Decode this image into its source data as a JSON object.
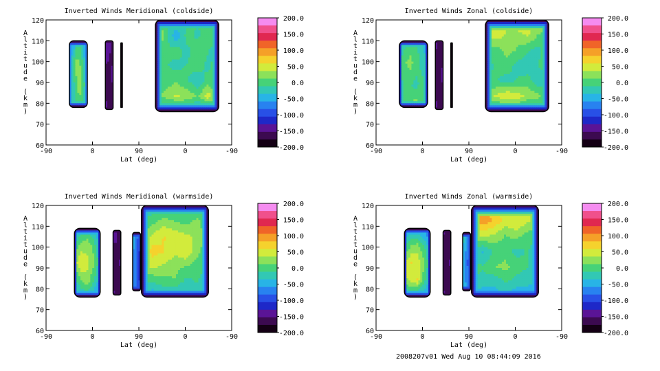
{
  "footer": "2008207v01 Wed Aug 10 08:44:09 2016",
  "colorbar": {
    "labels": [
      "200.0",
      "150.0",
      "100.0",
      "50.0",
      "0.0",
      "-50.0",
      "-100.0",
      "-150.0",
      "-200.0"
    ],
    "colors": [
      "#f58cf0",
      "#f0508c",
      "#e02850",
      "#f06428",
      "#f5a028",
      "#f5d22d",
      "#d2eb3c",
      "#8ce15a",
      "#46d278",
      "#32c8b4",
      "#28b4e6",
      "#2882f0",
      "#2850e6",
      "#1e28c8",
      "#5a1496",
      "#3c0a50",
      "#140014"
    ]
  },
  "chart_data": [
    {
      "type": "contour",
      "title": "Inverted Winds Meridional (coldside)",
      "xlabel": "Lat (deg)",
      "ylabel": "Altitude (km)",
      "xticks": [
        "-90",
        "0",
        "90",
        "0",
        "-90"
      ],
      "yticks": [
        60,
        70,
        80,
        90,
        100,
        110,
        120
      ],
      "ylim": [
        60,
        120
      ],
      "zlim": [
        -200,
        200
      ],
      "blobs": [
        {
          "x0": -45,
          "x1": -10,
          "y0": 78,
          "y1": 110,
          "field": [
            [
              0,
              -80,
              -20,
              0,
              -50,
              -80
            ],
            [
              -60,
              -10,
              20,
              10,
              -20,
              -70
            ],
            [
              -50,
              -30,
              10,
              30,
              0,
              -60
            ],
            [
              -70,
              -20,
              0,
              -10,
              -30,
              -80
            ]
          ]
        },
        {
          "x0": 25,
          "x1": 40,
          "y0": 77,
          "y1": 110,
          "field": [
            [
              -140,
              -160
            ],
            [
              -160,
              -150
            ],
            [
              -150,
              -160
            ]
          ]
        },
        {
          "x0": 55,
          "x1": 58,
          "y0": 78,
          "y1": 109,
          "field": [
            [
              -180
            ],
            [
              -190
            ]
          ]
        },
        {
          "x0": 122,
          "x1": 245,
          "y0": 76,
          "y1": 120,
          "field": [
            [
              40,
              -20,
              10,
              -20,
              0,
              -30,
              10
            ],
            [
              60,
              0,
              -60,
              0,
              -20,
              10,
              0
            ],
            [
              20,
              -10,
              0,
              -20,
              10,
              -10,
              -30
            ],
            [
              0,
              -10,
              -20,
              -10,
              0,
              -20,
              10
            ],
            [
              -10,
              0,
              10,
              -10,
              -30,
              0,
              -20
            ],
            [
              10,
              20,
              40,
              30,
              10,
              50,
              0
            ],
            [
              -60,
              -50,
              -60,
              -50,
              -60,
              -50,
              -40
            ]
          ]
        }
      ]
    },
    {
      "type": "contour",
      "title": "Inverted Winds Zonal (coldside)",
      "xlabel": "Lat (deg)",
      "ylabel": "Altitude (km)",
      "xticks": [
        "-90",
        "0",
        "90",
        "0",
        "-90"
      ],
      "yticks": [
        60,
        70,
        80,
        90,
        100,
        110,
        120
      ],
      "ylim": [
        60,
        120
      ],
      "zlim": [
        -200,
        200
      ],
      "blobs": [
        {
          "x0": -45,
          "x1": 10,
          "y0": 78,
          "y1": 110,
          "field": [
            [
              -40,
              -20,
              0,
              -10,
              -30,
              -60
            ],
            [
              -20,
              10,
              20,
              0,
              -20,
              -40
            ],
            [
              -30,
              0,
              -10,
              -20,
              0,
              -50
            ],
            [
              -40,
              -10,
              20,
              30,
              10,
              -40
            ]
          ]
        },
        {
          "x0": 25,
          "x1": 40,
          "y0": 77,
          "y1": 110,
          "field": [
            [
              -150,
              -160
            ],
            [
              -160,
              -150
            ],
            [
              -150,
              -160
            ]
          ]
        },
        {
          "x0": 55,
          "x1": 58,
          "y0": 78,
          "y1": 109,
          "field": [
            [
              -180
            ],
            [
              -190
            ]
          ]
        },
        {
          "x0": 122,
          "x1": 245,
          "y0": 76,
          "y1": 120,
          "field": [
            [
              60,
              70,
              50,
              80,
              60,
              40,
              20
            ],
            [
              40,
              50,
              30,
              20,
              40,
              10,
              0
            ],
            [
              10,
              0,
              20,
              10,
              -10,
              -20,
              10
            ],
            [
              -20,
              -10,
              0,
              -20,
              -30,
              -10,
              0
            ],
            [
              0,
              -10,
              -20,
              -10,
              0,
              -30,
              -10
            ],
            [
              20,
              40,
              60,
              50,
              30,
              20,
              -10
            ],
            [
              -50,
              -40,
              -50,
              -40,
              -50,
              -40,
              -30
            ]
          ]
        }
      ]
    },
    {
      "type": "contour",
      "title": "Inverted Winds Meridional (warmside)",
      "xlabel": "Lat (deg)",
      "ylabel": "Altitude (km)",
      "xticks": [
        "-90",
        "0",
        "90",
        "0",
        "-90"
      ],
      "yticks": [
        60,
        70,
        80,
        90,
        100,
        110,
        120
      ],
      "ylim": [
        60,
        120
      ],
      "zlim": [
        -200,
        200
      ],
      "blobs": [
        {
          "x0": -35,
          "x1": 15,
          "y0": 76,
          "y1": 109,
          "field": [
            [
              -60,
              -30,
              -20,
              -40,
              -70
            ],
            [
              -10,
              20,
              30,
              0,
              -40
            ],
            [
              20,
              60,
              40,
              20,
              -30
            ],
            [
              -20,
              10,
              30,
              -10,
              -50
            ],
            [
              -60,
              -40,
              -30,
              -50,
              -80
            ]
          ]
        },
        {
          "x0": 40,
          "x1": 55,
          "y0": 77,
          "y1": 108,
          "field": [
            [
              -140,
              -160
            ],
            [
              -170,
              -150
            ],
            [
              -150,
              -160
            ]
          ]
        },
        {
          "x0": 78,
          "x1": 93,
          "y0": 79,
          "y1": 107,
          "field": [
            [
              -40,
              -100
            ],
            [
              -60,
              -120
            ],
            [
              -50,
              -110
            ]
          ]
        },
        {
          "x0": 95,
          "x1": 225,
          "y0": 76,
          "y1": 120,
          "field": [
            [
              -20,
              -30,
              -20,
              -40,
              -10,
              -30,
              -40
            ],
            [
              -10,
              0,
              20,
              10,
              0,
              20,
              -20
            ],
            [
              10,
              40,
              60,
              50,
              40,
              30,
              0
            ],
            [
              30,
              70,
              60,
              40,
              60,
              20,
              -10
            ],
            [
              20,
              40,
              30,
              20,
              10,
              0,
              -20
            ],
            [
              0,
              -10,
              0,
              10,
              -20,
              -10,
              -30
            ],
            [
              -50,
              -60,
              -40,
              -60,
              -50,
              -40,
              -60
            ]
          ]
        }
      ]
    },
    {
      "type": "contour",
      "title": "Inverted Winds Zonal (warmside)",
      "xlabel": "Lat (deg)",
      "ylabel": "Altitude (km)",
      "xticks": [
        "-90",
        "0",
        "90",
        "0",
        "-90"
      ],
      "yticks": [
        60,
        70,
        80,
        90,
        100,
        110,
        120
      ],
      "ylim": [
        60,
        120
      ],
      "zlim": [
        -200,
        200
      ],
      "blobs": [
        {
          "x0": -35,
          "x1": 15,
          "y0": 76,
          "y1": 109,
          "field": [
            [
              -80,
              -50,
              -60,
              -70,
              -90
            ],
            [
              -20,
              10,
              20,
              -10,
              -50
            ],
            [
              30,
              60,
              50,
              20,
              -30
            ],
            [
              20,
              50,
              60,
              0,
              -40
            ],
            [
              -60,
              -40,
              -50,
              -60,
              -80
            ]
          ]
        },
        {
          "x0": 40,
          "x1": 55,
          "y0": 77,
          "y1": 108,
          "field": [
            [
              -150,
              -160
            ],
            [
              -170,
              -150
            ],
            [
              -150,
              -160
            ]
          ]
        },
        {
          "x0": 78,
          "x1": 93,
          "y0": 79,
          "y1": 107,
          "field": [
            [
              -20,
              -90
            ],
            [
              -40,
              -110
            ],
            [
              -30,
              -100
            ]
          ]
        },
        {
          "x0": 95,
          "x1": 225,
          "y0": 76,
          "y1": 120,
          "field": [
            [
              40,
              60,
              70,
              40,
              50,
              60,
              10
            ],
            [
              60,
              100,
              80,
              50,
              60,
              40,
              20
            ],
            [
              20,
              40,
              30,
              10,
              20,
              0,
              -10
            ],
            [
              -20,
              -40,
              -10,
              0,
              -20,
              -10,
              -30
            ],
            [
              0,
              -10,
              10,
              20,
              0,
              -10,
              -20
            ],
            [
              -10,
              -20,
              -30,
              -10,
              -20,
              -30,
              -40
            ],
            [
              -50,
              -60,
              -50,
              -40,
              -60,
              -50,
              -40
            ]
          ]
        }
      ]
    }
  ]
}
